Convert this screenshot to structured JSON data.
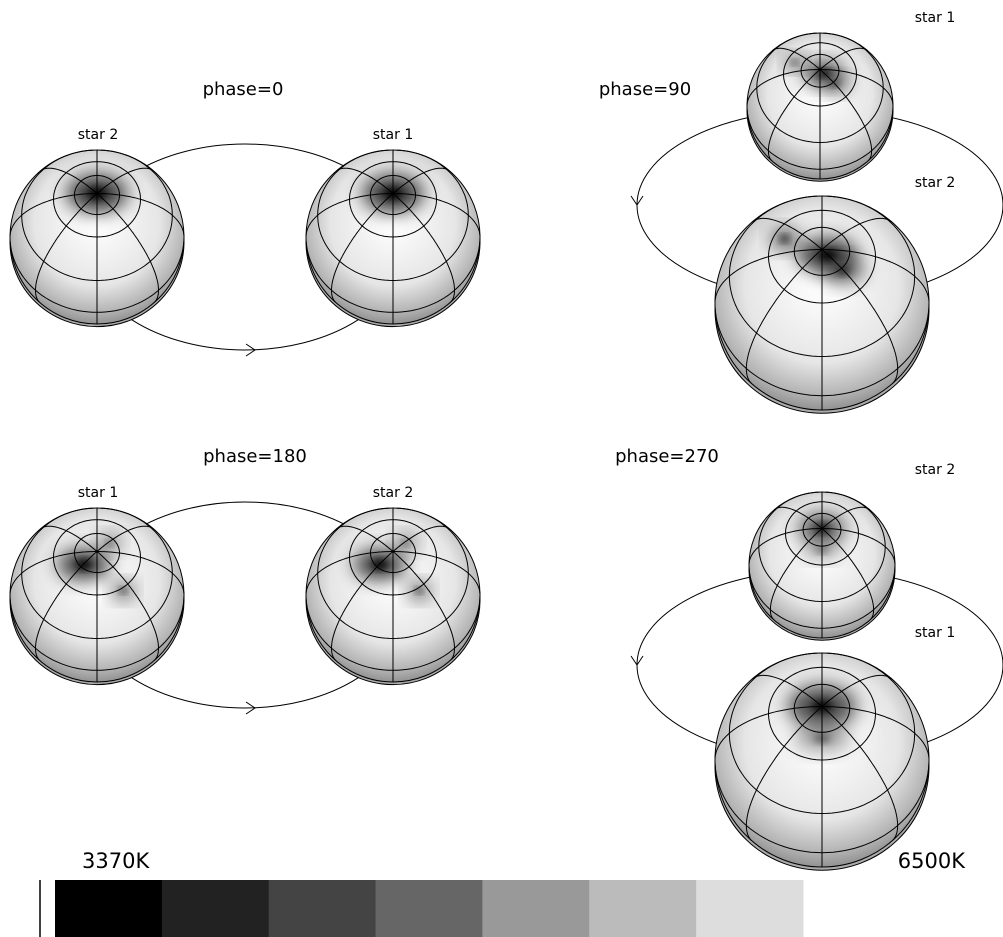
{
  "panels": [
    {
      "title": "phase=0",
      "stars": [
        "star 2",
        "star 1"
      ]
    },
    {
      "title": "phase=90",
      "stars": [
        "star 1",
        "star 2"
      ]
    },
    {
      "title": "phase=180",
      "stars": [
        "star 1",
        "star 2"
      ]
    },
    {
      "title": "phase=270",
      "stars": [
        "star 2",
        "star 1"
      ]
    }
  ],
  "colorbar": {
    "min_label": "3370K",
    "max_label": "6500K",
    "colors": [
      "#000000",
      "#222222",
      "#444444",
      "#666666",
      "#999999",
      "#bbbbbb",
      "#dddddd"
    ]
  }
}
